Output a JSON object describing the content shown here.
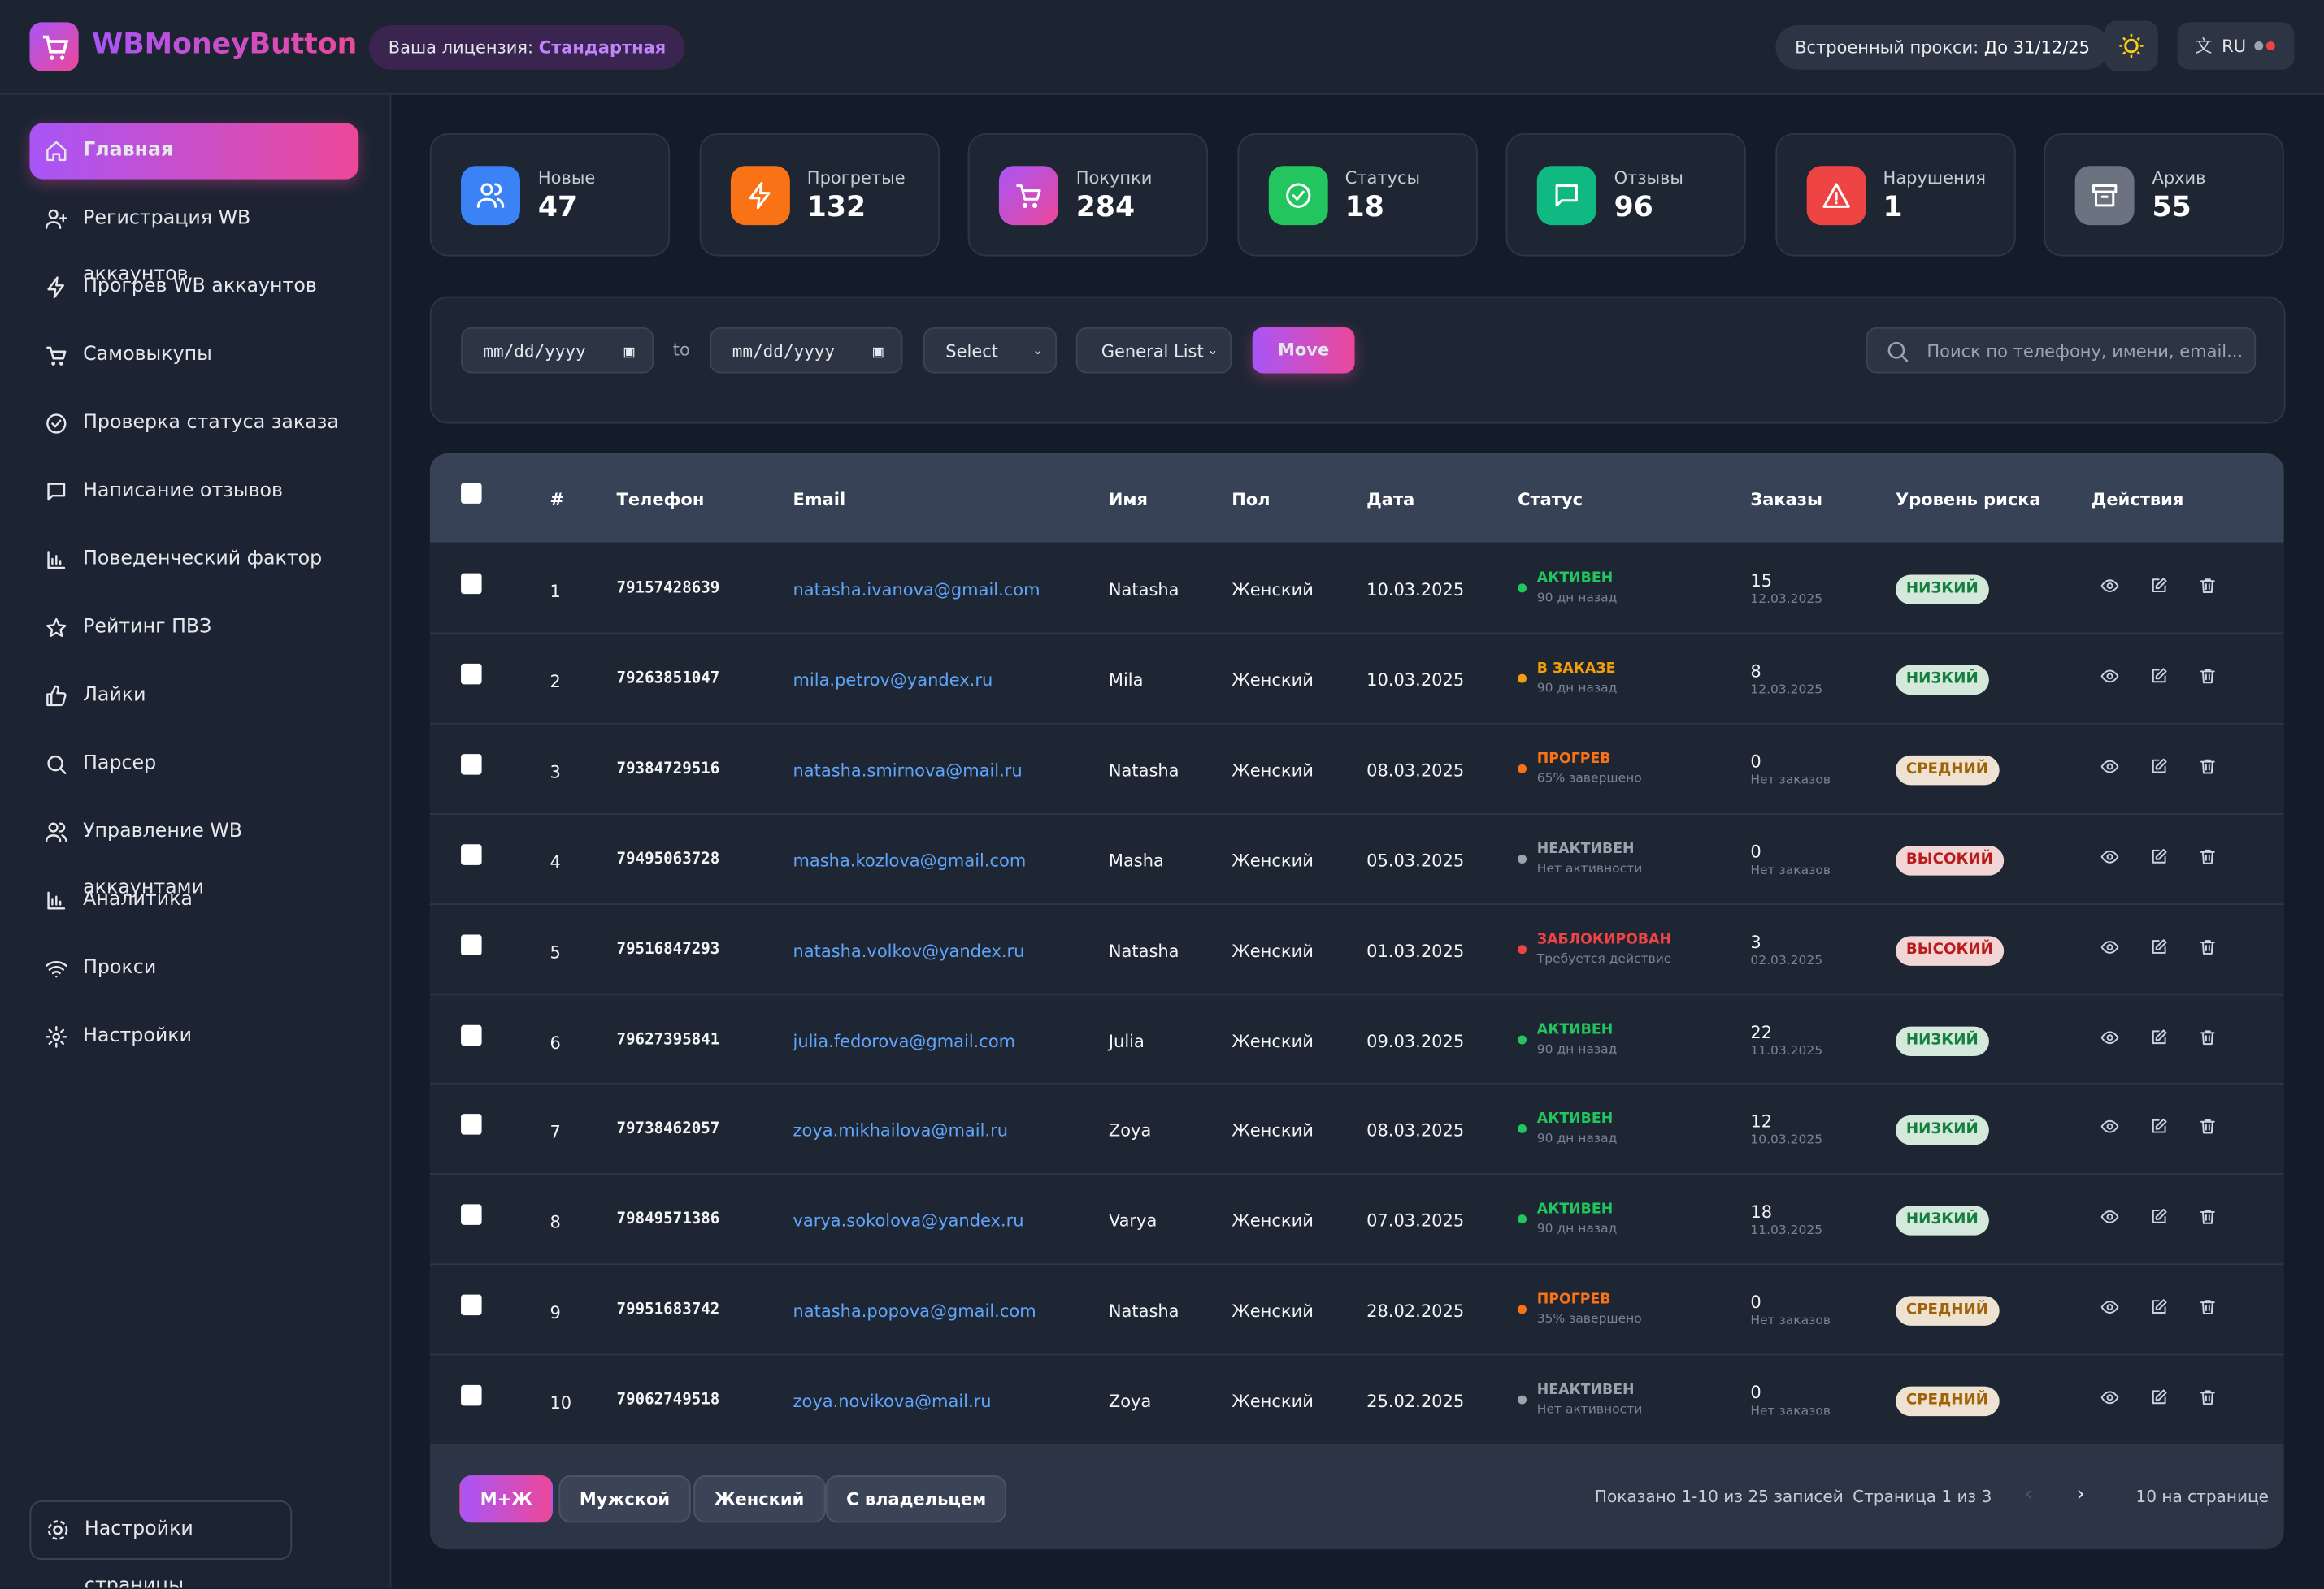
{
  "header": {
    "logo": "WBMoneyButton",
    "license_label": "Ваша лицензия:",
    "license_value": "Стандартная",
    "proxy_label": "Встроенный прокси:",
    "proxy_value": "До 31/12/25",
    "language": "RU"
  },
  "sidebar": {
    "items": [
      "Главная",
      "Регистрация WB аккаунтов",
      "Прогрев WB аккаунтов",
      "Самовыкупы",
      "Проверка статуса заказа",
      "Написание отзывов",
      "Поведенческий фактор",
      "Рейтинг ПВЗ",
      "Лайки",
      "Парсер",
      "Управление WB аккаунтами",
      "Аналитика",
      "Прокси",
      "Настройки"
    ],
    "footer": "Настройки страницы"
  },
  "stats": [
    {
      "label": "Новые",
      "value": 47,
      "color": "#3b82f6"
    },
    {
      "label": "Прогретые",
      "value": 132,
      "color": "#f97316"
    },
    {
      "label": "Покупки",
      "value": 284,
      "color": "#c026d3"
    },
    {
      "label": "Статусы",
      "value": 18,
      "color": "#22c55e"
    },
    {
      "label": "Отзывы",
      "value": 96,
      "color": "#10b981"
    },
    {
      "label": "Нарушения",
      "value": 1,
      "color": "#ef4444"
    },
    {
      "label": "Архив",
      "value": 55,
      "color": "#6b7280"
    }
  ],
  "filters": {
    "date_from": "mm/dd/yyyy",
    "to": "to",
    "date_to": "mm/dd/yyyy",
    "select": "Select",
    "list": "General List",
    "move": "Move",
    "search": "Поиск по телефону, имени, email..."
  },
  "table": {
    "columns": [
      "#",
      "Телефон",
      "Email",
      "Имя",
      "Пол",
      "Дата",
      "Статус",
      "Заказы",
      "Уровень риска",
      "Действия"
    ],
    "rows": [
      {
        "num": 1,
        "phone": "79157428639",
        "email": "natasha.ivanova@gmail.com",
        "name": "Natasha",
        "gender": "Женский",
        "date": "10.03.2025",
        "status": "АКТИВЕН",
        "status_sub": "90 дн назад",
        "status_color": "#22c55e",
        "orders": 15,
        "orders_sub": "12.03.2025",
        "risk": "НИЗКИЙ",
        "risk_color": "#15803d"
      },
      {
        "num": 2,
        "phone": "79263851047",
        "email": "mila.petrov@yandex.ru",
        "name": "Mila",
        "gender": "Женский",
        "date": "10.03.2025",
        "status": "В ЗАКАЗЕ",
        "status_sub": "90 дн назад",
        "status_color": "#f59e0b",
        "orders": 8,
        "orders_sub": "12.03.2025",
        "risk": "НИЗКИЙ",
        "risk_color": "#15803d"
      },
      {
        "num": 3,
        "phone": "79384729516",
        "email": "natasha.smirnova@mail.ru",
        "name": "Natasha",
        "gender": "Женский",
        "date": "08.03.2025",
        "status": "ПРОГРЕВ",
        "status_sub": "65% завершено",
        "status_color": "#f97316",
        "orders": 0,
        "orders_sub": "Нет заказов",
        "risk": "СРЕДНИЙ",
        "risk_color": "#a16207"
      },
      {
        "num": 4,
        "phone": "79495063728",
        "email": "masha.kozlova@gmail.com",
        "name": "Masha",
        "gender": "Женский",
        "date": "05.03.2025",
        "status": "НЕАКТИВЕН",
        "status_sub": "Нет активности",
        "status_color": "#9ca3af",
        "orders": 0,
        "orders_sub": "Нет заказов",
        "risk": "ВЫСОКИЙ",
        "risk_color": "#b91c1c"
      },
      {
        "num": 5,
        "phone": "79516847293",
        "email": "natasha.volkov@yandex.ru",
        "name": "Natasha",
        "gender": "Женский",
        "date": "01.03.2025",
        "status": "ЗАБЛОКИРОВАН",
        "status_sub": "Требуется действие",
        "status_color": "#ef4444",
        "orders": 3,
        "orders_sub": "02.03.2025",
        "risk": "ВЫСОКИЙ",
        "risk_color": "#b91c1c"
      },
      {
        "num": 6,
        "phone": "79627395841",
        "email": "julia.fedorova@gmail.com",
        "name": "Julia",
        "gender": "Женский",
        "date": "09.03.2025",
        "status": "АКТИВЕН",
        "status_sub": "90 дн назад",
        "status_color": "#22c55e",
        "orders": 22,
        "orders_sub": "11.03.2025",
        "risk": "НИЗКИЙ",
        "risk_color": "#15803d"
      },
      {
        "num": 7,
        "phone": "79738462057",
        "email": "zoya.mikhailova@mail.ru",
        "name": "Zoya",
        "gender": "Женский",
        "date": "08.03.2025",
        "status": "АКТИВЕН",
        "status_sub": "90 дн назад",
        "status_color": "#22c55e",
        "orders": 12,
        "orders_sub": "10.03.2025",
        "risk": "НИЗКИЙ",
        "risk_color": "#15803d"
      },
      {
        "num": 8,
        "phone": "79849571386",
        "email": "varya.sokolova@yandex.ru",
        "name": "Varya",
        "gender": "Женский",
        "date": "07.03.2025",
        "status": "АКТИВЕН",
        "status_sub": "90 дн назад",
        "status_color": "#22c55e",
        "orders": 18,
        "orders_sub": "11.03.2025",
        "risk": "НИЗКИЙ",
        "risk_color": "#15803d"
      },
      {
        "num": 9,
        "phone": "79951683742",
        "email": "natasha.popova@gmail.com",
        "name": "Natasha",
        "gender": "Женский",
        "date": "28.02.2025",
        "status": "ПРОГРЕВ",
        "status_sub": "35% завершено",
        "status_color": "#f97316",
        "orders": 0,
        "orders_sub": "Нет заказов",
        "risk": "СРЕДНИЙ",
        "risk_color": "#a16207"
      },
      {
        "num": 10,
        "phone": "79062749518",
        "email": "zoya.novikova@mail.ru",
        "name": "Zoya",
        "gender": "Женский",
        "date": "25.02.2025",
        "status": "НЕАКТИВЕН",
        "status_sub": "Нет активности",
        "status_color": "#9ca3af",
        "orders": 0,
        "orders_sub": "Нет заказов",
        "risk": "СРЕДНИЙ",
        "risk_color": "#a16207"
      }
    ]
  },
  "footer": {
    "filters": [
      "М+Ж",
      "Мужской",
      "Женский",
      "С владельцем"
    ],
    "info": "Показано 1-10 из 25 записей",
    "page": "Страница 1 из 3",
    "per_page": "10 на странице"
  }
}
